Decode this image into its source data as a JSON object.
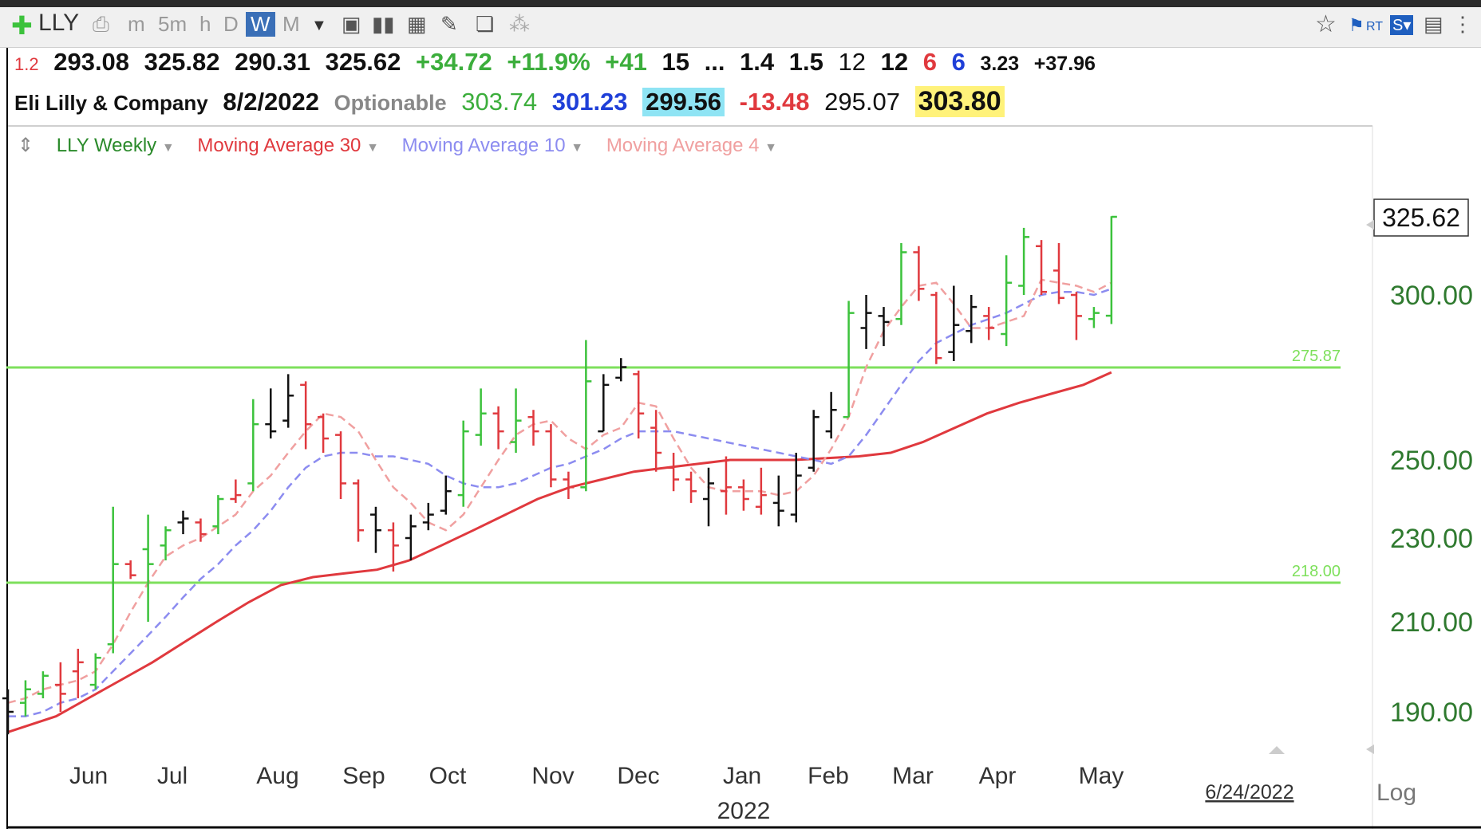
{
  "toolbar": {
    "symbol": "LLY",
    "intervals": [
      "m",
      "5m",
      "h",
      "D",
      "W",
      "M"
    ],
    "selected_interval": "W"
  },
  "quote_line1": {
    "ratio": "1.2",
    "open": "293.08",
    "high": "325.82",
    "low": "290.31",
    "close": "325.62",
    "change": "+34.72",
    "change_pct": "+11.9%",
    "rank": "+41",
    "v1": "15",
    "ellipsis": "...",
    "v2": "1.4",
    "v3": "1.5",
    "v4": "12",
    "v5": "12",
    "v6": "6",
    "v7": "6",
    "v8": "3.23",
    "v9": "+37.96"
  },
  "quote_line2": {
    "company": "Eli Lilly & Company",
    "date": "8/2/2022",
    "optionable": "Optionable",
    "p1": "303.74",
    "p2": "301.23",
    "p3": "299.56",
    "p4": "-13.48",
    "p5": "295.07",
    "p6": "303.80"
  },
  "legend": {
    "series": "LLY Weekly",
    "ma30": "Moving Average 30",
    "ma10": "Moving Average 10",
    "ma4": "Moving Average 4"
  },
  "colors": {
    "up": "#3cc23c",
    "down": "#e0393e",
    "neutral": "#111111",
    "ma30": "#e0393e",
    "ma10": "#8c8cf0",
    "ma4": "#f0a0a0",
    "hline": "#7ee05c"
  },
  "chart_data": {
    "type": "ohlc",
    "interval": "weekly",
    "y_ticks": [
      190,
      210,
      230,
      250,
      300
    ],
    "y_tick_labels": [
      "190.00",
      "210.00",
      "230.00",
      "250.00",
      "300.00"
    ],
    "x_month_labels": [
      "Jun",
      "Jul",
      "Aug",
      "Sep",
      "Oct",
      "Nov",
      "Dec",
      "Jan",
      "Feb",
      "Mar",
      "Apr",
      "May"
    ],
    "x_year_label": "2022",
    "last_price_label": "325.62",
    "hlines": [
      {
        "value": 275.87,
        "label": "275.87"
      },
      {
        "value": 218.0,
        "label": "218.00"
      }
    ],
    "crosshair_date": "6/24/2022",
    "scale_mode": "Log",
    "bars": [
      {
        "o": 193,
        "h": 195,
        "l": 185,
        "c": 190,
        "d": "n"
      },
      {
        "o": 192,
        "h": 197,
        "l": 189,
        "c": 195,
        "d": "u"
      },
      {
        "o": 194,
        "h": 199,
        "l": 193,
        "c": 198,
        "d": "u"
      },
      {
        "o": 196,
        "h": 201,
        "l": 190,
        "c": 194,
        "d": "d"
      },
      {
        "o": 199,
        "h": 204,
        "l": 193,
        "c": 201,
        "d": "d"
      },
      {
        "o": 196,
        "h": 203,
        "l": 195,
        "c": 202,
        "d": "u"
      },
      {
        "o": 205,
        "h": 238,
        "l": 203,
        "c": 223,
        "d": "u"
      },
      {
        "o": 223,
        "h": 224,
        "l": 219,
        "c": 220,
        "d": "d"
      },
      {
        "o": 227,
        "h": 236,
        "l": 210,
        "c": 223,
        "d": "u"
      },
      {
        "o": 228,
        "h": 233,
        "l": 224,
        "c": 232,
        "d": "u"
      },
      {
        "o": 234,
        "h": 237,
        "l": 231,
        "c": 235,
        "d": "n"
      },
      {
        "o": 234,
        "h": 235,
        "l": 229,
        "c": 231,
        "d": "d"
      },
      {
        "o": 233,
        "h": 241,
        "l": 231,
        "c": 240,
        "d": "u"
      },
      {
        "o": 240,
        "h": 245,
        "l": 239,
        "c": 241,
        "d": "d"
      },
      {
        "o": 244,
        "h": 267,
        "l": 242,
        "c": 260,
        "d": "u"
      },
      {
        "o": 260,
        "h": 270,
        "l": 256,
        "c": 258,
        "d": "n"
      },
      {
        "o": 261,
        "h": 274,
        "l": 259,
        "c": 268,
        "d": "n"
      },
      {
        "o": 271,
        "h": 272,
        "l": 253,
        "c": 260,
        "d": "d"
      },
      {
        "o": 262,
        "h": 263,
        "l": 252,
        "c": 256,
        "d": "d"
      },
      {
        "o": 257,
        "h": 258,
        "l": 240,
        "c": 244,
        "d": "d"
      },
      {
        "o": 244,
        "h": 245,
        "l": 229,
        "c": 232,
        "d": "d"
      },
      {
        "o": 236,
        "h": 238,
        "l": 226,
        "c": 232,
        "d": "n"
      },
      {
        "o": 232,
        "h": 234,
        "l": 221,
        "c": 228,
        "d": "d"
      },
      {
        "o": 230,
        "h": 236,
        "l": 224,
        "c": 233,
        "d": "n"
      },
      {
        "o": 234,
        "h": 239,
        "l": 232,
        "c": 236,
        "d": "n"
      },
      {
        "o": 237,
        "h": 246,
        "l": 236,
        "c": 242,
        "d": "n"
      },
      {
        "o": 241,
        "h": 261,
        "l": 238,
        "c": 258,
        "d": "u"
      },
      {
        "o": 257,
        "h": 270,
        "l": 254,
        "c": 263,
        "d": "u"
      },
      {
        "o": 263,
        "h": 265,
        "l": 253,
        "c": 258,
        "d": "d"
      },
      {
        "o": 255,
        "h": 270,
        "l": 252,
        "c": 261,
        "d": "u"
      },
      {
        "o": 262,
        "h": 264,
        "l": 254,
        "c": 258,
        "d": "d"
      },
      {
        "o": 258,
        "h": 260,
        "l": 243,
        "c": 245,
        "d": "d"
      },
      {
        "o": 245,
        "h": 247,
        "l": 240,
        "c": 243,
        "d": "d"
      },
      {
        "o": 243,
        "h": 285,
        "l": 242,
        "c": 272,
        "d": "u"
      },
      {
        "o": 258,
        "h": 274,
        "l": 258,
        "c": 271,
        "d": "n"
      },
      {
        "o": 273,
        "h": 279,
        "l": 272,
        "c": 276,
        "d": "n"
      },
      {
        "o": 274,
        "h": 275,
        "l": 256,
        "c": 263,
        "d": "d"
      },
      {
        "o": 259,
        "h": 264,
        "l": 247,
        "c": 252,
        "d": "d"
      },
      {
        "o": 248,
        "h": 252,
        "l": 242,
        "c": 245,
        "d": "d"
      },
      {
        "o": 245,
        "h": 247,
        "l": 239,
        "c": 242,
        "d": "d"
      },
      {
        "o": 240,
        "h": 248,
        "l": 233,
        "c": 244,
        "d": "n"
      },
      {
        "o": 242,
        "h": 251,
        "l": 236,
        "c": 243,
        "d": "d"
      },
      {
        "o": 243,
        "h": 245,
        "l": 237,
        "c": 240,
        "d": "d"
      },
      {
        "o": 238,
        "h": 248,
        "l": 236,
        "c": 241,
        "d": "d"
      },
      {
        "o": 239,
        "h": 246,
        "l": 233,
        "c": 237,
        "d": "n"
      },
      {
        "o": 236,
        "h": 252,
        "l": 234,
        "c": 246,
        "d": "n"
      },
      {
        "o": 248,
        "h": 264,
        "l": 247,
        "c": 262,
        "d": "n"
      },
      {
        "o": 258,
        "h": 269,
        "l": 256,
        "c": 264,
        "d": "n"
      },
      {
        "o": 262,
        "h": 298,
        "l": 262,
        "c": 294,
        "d": "u"
      },
      {
        "o": 289,
        "h": 300,
        "l": 282,
        "c": 294,
        "d": "n"
      },
      {
        "o": 293,
        "h": 296,
        "l": 283,
        "c": 291,
        "d": "n"
      },
      {
        "o": 292,
        "h": 317,
        "l": 290,
        "c": 314,
        "d": "u"
      },
      {
        "o": 314,
        "h": 316,
        "l": 298,
        "c": 302,
        "d": "d"
      },
      {
        "o": 300,
        "h": 301,
        "l": 277,
        "c": 279,
        "d": "d"
      },
      {
        "o": 281,
        "h": 303,
        "l": 278,
        "c": 290,
        "d": "n"
      },
      {
        "o": 288,
        "h": 300,
        "l": 284,
        "c": 296,
        "d": "n"
      },
      {
        "o": 293,
        "h": 296,
        "l": 285,
        "c": 289,
        "d": "d"
      },
      {
        "o": 287,
        "h": 313,
        "l": 283,
        "c": 304,
        "d": "u"
      },
      {
        "o": 303,
        "h": 322,
        "l": 300,
        "c": 319,
        "d": "u"
      },
      {
        "o": 316,
        "h": 318,
        "l": 300,
        "c": 301,
        "d": "d"
      },
      {
        "o": 308,
        "h": 317,
        "l": 297,
        "c": 299,
        "d": "d"
      },
      {
        "o": 300,
        "h": 301,
        "l": 285,
        "c": 293,
        "d": "d"
      },
      {
        "o": 292,
        "h": 296,
        "l": 289,
        "c": 294,
        "d": "u"
      },
      {
        "o": 293.08,
        "h": 325.82,
        "l": 290.31,
        "c": 325.62,
        "d": "u"
      }
    ],
    "ma4": [
      192,
      193,
      195,
      196,
      197,
      199,
      205,
      212,
      218,
      225,
      228,
      230,
      233,
      236,
      242,
      246,
      252,
      258,
      263,
      262,
      258,
      250,
      243,
      239,
      234,
      232,
      236,
      243,
      250,
      257,
      260,
      261,
      256,
      253,
      257,
      259,
      266,
      265,
      256,
      248,
      243,
      242,
      242,
      242,
      241,
      242,
      246,
      253,
      262,
      276,
      288,
      296,
      303,
      304,
      297,
      289,
      289,
      291,
      293,
      305,
      304,
      303,
      301,
      304
    ],
    "ma10": [
      189,
      189,
      190,
      192,
      193,
      195,
      199,
      203,
      207,
      211,
      215,
      219,
      223,
      228,
      232,
      237,
      243,
      248,
      251,
      252,
      252,
      251,
      251,
      250,
      249,
      246,
      244,
      243,
      243,
      244,
      246,
      248,
      249,
      251,
      253,
      256,
      258,
      258,
      258,
      257,
      256,
      255,
      254,
      253,
      252,
      251,
      250,
      249,
      251,
      257,
      264,
      271,
      278,
      284,
      287,
      290,
      292,
      294,
      297,
      300,
      301,
      301,
      300,
      302
    ],
    "ma30": [
      null,
      null,
      null,
      null,
      null,
      null,
      null,
      null,
      null,
      null,
      null,
      null,
      null,
      null,
      null,
      null,
      null,
      null,
      null,
      null,
      null,
      null,
      null,
      null,
      null,
      null,
      null,
      null,
      null,
      null,
      null,
      null,
      null,
      null,
      null,
      null,
      null,
      null,
      null,
      null,
      null,
      null,
      null,
      null,
      null,
      null,
      null,
      null,
      null,
      null,
      null,
      null,
      null,
      null,
      null,
      null,
      null,
      null,
      null,
      null,
      null,
      null,
      null,
      null
    ],
    "ma30_points": [
      [
        8,
        185.5
      ],
      [
        20,
        189
      ],
      [
        28,
        193
      ],
      [
        36,
        197
      ],
      [
        44,
        201
      ],
      [
        52,
        205.5
      ],
      [
        60,
        210
      ],
      [
        68,
        214
      ],
      [
        76,
        217.5
      ],
      [
        84,
        219.5
      ],
      [
        92,
        220.5
      ],
      [
        100,
        221.5
      ],
      [
        108,
        224
      ],
      [
        116,
        228
      ],
      [
        124,
        232
      ],
      [
        132,
        236
      ],
      [
        140,
        240
      ],
      [
        148,
        243
      ],
      [
        156,
        245
      ],
      [
        164,
        247
      ],
      [
        172,
        248
      ],
      [
        180,
        249
      ],
      [
        188,
        250
      ],
      [
        196,
        250
      ],
      [
        204,
        250
      ],
      [
        212,
        250.5
      ],
      [
        220,
        251
      ],
      [
        228,
        252
      ],
      [
        236,
        255
      ],
      [
        244,
        259
      ],
      [
        252,
        263
      ],
      [
        260,
        266
      ],
      [
        268,
        268.5
      ],
      [
        276,
        271
      ],
      [
        283,
        274.5
      ]
    ]
  }
}
